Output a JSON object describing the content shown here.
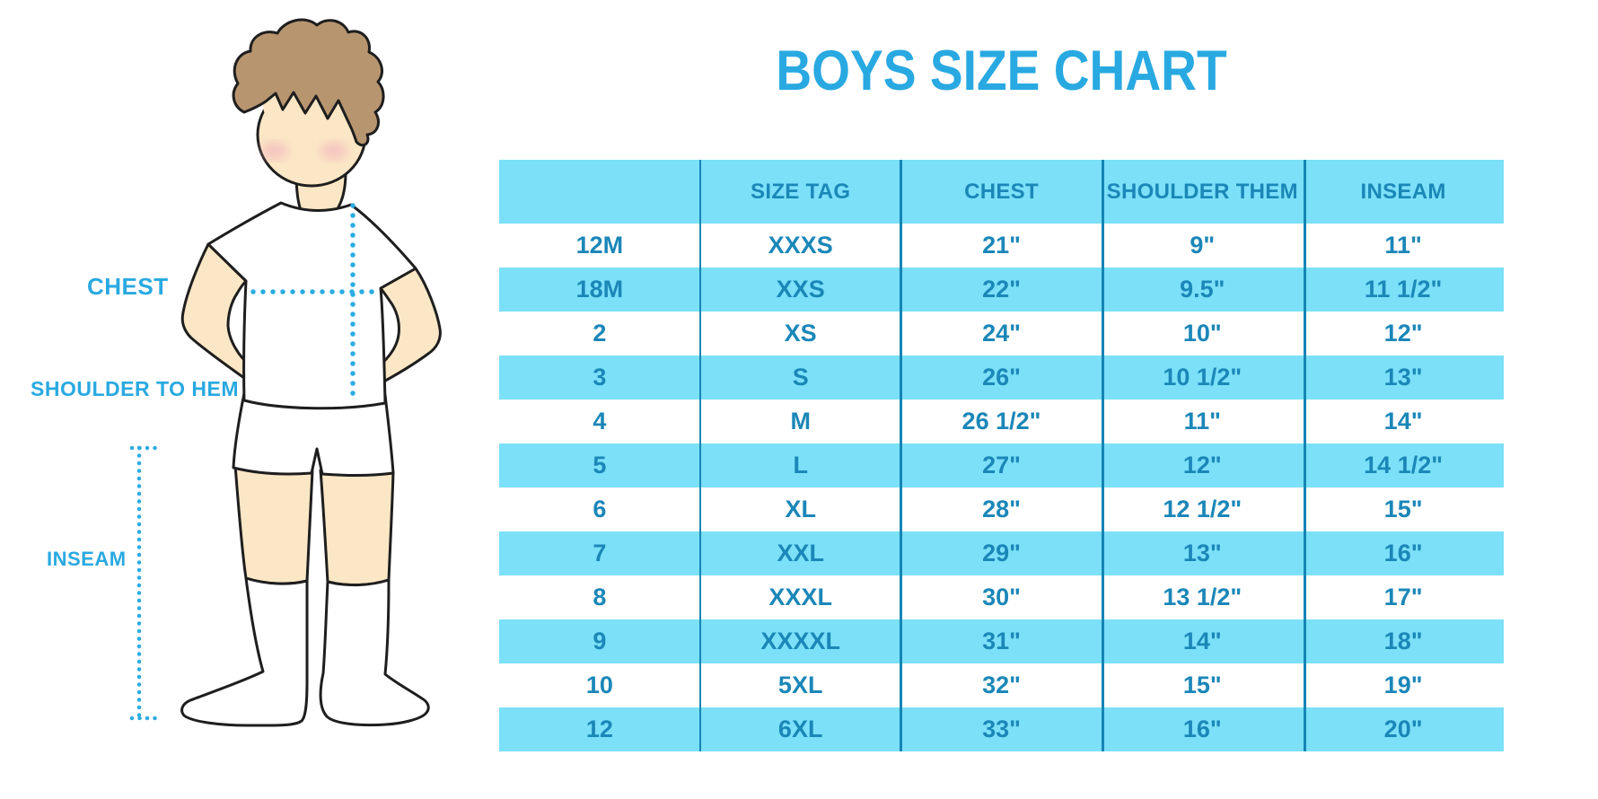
{
  "title": "BOYS SIZE CHART",
  "figure": {
    "labels": {
      "chest": "CHEST",
      "shoulder_to_hem": "SHOULDER TO HEM",
      "inseam": "INSEAM"
    }
  },
  "colors": {
    "stripe": "#7BE0F8",
    "table_text": "#1B87B8",
    "separator": "#1585B5",
    "title_blue": "#29A9E1",
    "accent_blue": "#29A9E1",
    "skin": "#FBE7C5",
    "hair": "#B7956F",
    "blush": "#F2ACBB",
    "outline": "#1E1E1E"
  },
  "chart_data": {
    "type": "table",
    "title": "BOYS SIZE CHART",
    "columns": [
      "",
      "SIZE TAG",
      "CHEST",
      "SHOULDER THEM",
      "INSEAM"
    ],
    "rows": [
      [
        "12M",
        "XXXS",
        "21\"",
        "9\"",
        "11\""
      ],
      [
        "18M",
        "XXS",
        "22\"",
        "9.5\"",
        "11 1/2\""
      ],
      [
        "2",
        "XS",
        "24\"",
        "10\"",
        "12\""
      ],
      [
        "3",
        "S",
        "26\"",
        "10 1/2\"",
        "13\""
      ],
      [
        "4",
        "M",
        "26 1/2\"",
        "11\"",
        "14\""
      ],
      [
        "5",
        "L",
        "27\"",
        "12\"",
        "14 1/2\""
      ],
      [
        "6",
        "XL",
        "28\"",
        "12 1/2\"",
        "15\""
      ],
      [
        "7",
        "XXL",
        "29\"",
        "13\"",
        "16\""
      ],
      [
        "8",
        "XXXL",
        "30\"",
        "13 1/2\"",
        "17\""
      ],
      [
        "9",
        "XXXXL",
        "31\"",
        "14\"",
        "18\""
      ],
      [
        "10",
        "5XL",
        "32\"",
        "15\"",
        "19\""
      ],
      [
        "12",
        "6XL",
        "33\"",
        "16\"",
        "20\""
      ]
    ],
    "stripe_pattern": "header and even data rows light blue, others white",
    "grid": "vertical separators only"
  }
}
